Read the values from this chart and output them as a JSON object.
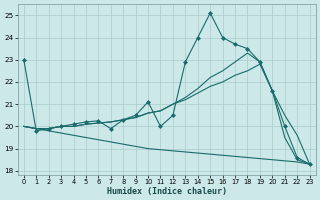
{
  "xlabel": "Humidex (Indice chaleur)",
  "background_color": "#cce8e8",
  "grid_color": "#aacccc",
  "line_color": "#1a6b6b",
  "xlim": [
    -0.5,
    23.5
  ],
  "ylim": [
    17.8,
    25.5
  ],
  "xticks": [
    0,
    1,
    2,
    3,
    4,
    5,
    6,
    7,
    8,
    9,
    10,
    11,
    12,
    13,
    14,
    15,
    16,
    17,
    18,
    19,
    20,
    21,
    22,
    23
  ],
  "yticks": [
    18,
    19,
    20,
    21,
    22,
    23,
    24,
    25
  ],
  "curve1_x": [
    0,
    1,
    2,
    3,
    4,
    5,
    6,
    7,
    8,
    9,
    10,
    11,
    12,
    13,
    14,
    15,
    16,
    17,
    18,
    19,
    20,
    21,
    22,
    23
  ],
  "curve1_y": [
    23.0,
    19.8,
    19.9,
    20.0,
    20.1,
    20.2,
    20.25,
    19.9,
    20.3,
    20.5,
    21.1,
    20.0,
    20.5,
    22.9,
    24.0,
    25.1,
    24.0,
    23.7,
    23.5,
    22.9,
    21.6,
    20.0,
    18.6,
    18.3
  ],
  "curve2_x": [
    0,
    1,
    2,
    3,
    4,
    5,
    6,
    7,
    8,
    9,
    10,
    11,
    12,
    13,
    14,
    15,
    16,
    17,
    18,
    19,
    20,
    21,
    22,
    23
  ],
  "curve2_y": [
    20.0,
    19.9,
    19.9,
    20.0,
    20.0,
    20.1,
    20.15,
    20.2,
    20.3,
    20.4,
    20.6,
    20.7,
    21.0,
    21.2,
    21.5,
    21.8,
    22.0,
    22.3,
    22.5,
    22.8,
    21.6,
    20.5,
    19.6,
    18.3
  ],
  "curve3_x": [
    0,
    1,
    2,
    3,
    4,
    5,
    6,
    7,
    8,
    9,
    10,
    11,
    12,
    13,
    14,
    15,
    16,
    17,
    18,
    19,
    20,
    21,
    22,
    23
  ],
  "curve3_y": [
    20.0,
    19.9,
    19.9,
    20.0,
    20.0,
    20.1,
    20.15,
    20.2,
    20.3,
    20.4,
    20.6,
    20.7,
    21.0,
    21.3,
    21.7,
    22.2,
    22.5,
    22.9,
    23.3,
    22.9,
    21.6,
    19.5,
    18.5,
    18.3
  ],
  "curve4_x": [
    0,
    1,
    2,
    3,
    4,
    5,
    6,
    7,
    8,
    9,
    10,
    11,
    12,
    13,
    14,
    15,
    16,
    17,
    18,
    19,
    20,
    21,
    22,
    23
  ],
  "curve4_y": [
    20.0,
    19.9,
    19.8,
    19.7,
    19.6,
    19.5,
    19.4,
    19.3,
    19.2,
    19.1,
    19.0,
    18.95,
    18.9,
    18.85,
    18.8,
    18.75,
    18.7,
    18.65,
    18.6,
    18.55,
    18.5,
    18.45,
    18.4,
    18.3
  ]
}
